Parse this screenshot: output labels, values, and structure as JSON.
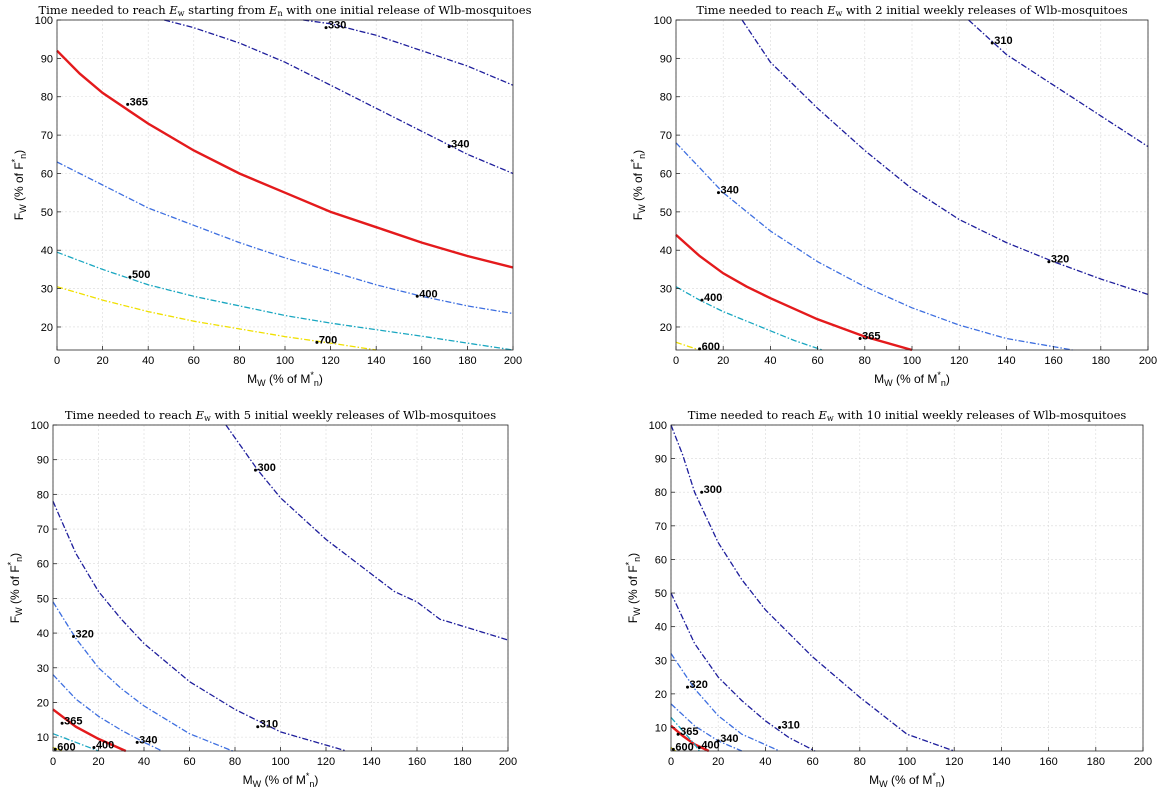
{
  "chart_data": [
    {
      "type": "line",
      "title_parts": [
        "Time needed to reach ",
        "E",
        "w",
        " starting from ",
        "E",
        "n",
        " with one initial release of Wlb-mosquitoes"
      ],
      "xlabel": {
        "main": "M",
        "sub": "W",
        "rest": " (% of M",
        "sup": "*",
        "sub2": "n",
        "close": ")"
      },
      "ylabel": {
        "main": "F",
        "sub": "W",
        "rest": " (% of F",
        "sup": "*",
        "sub2": "n",
        "close": ")"
      },
      "xlim": [
        0,
        200
      ],
      "ylim": [
        14,
        100
      ],
      "xticks": [
        0,
        20,
        40,
        60,
        80,
        100,
        120,
        140,
        160,
        180,
        200
      ],
      "yticks": [
        20,
        30,
        40,
        50,
        60,
        70,
        80,
        90,
        100
      ],
      "xtick_labels": [
        "0",
        "20",
        "40",
        "60",
        "80",
        "100",
        "120",
        "140",
        "160",
        "180",
        "200"
      ],
      "ytick_labels": [
        "20",
        "30",
        "40",
        "50",
        "60",
        "70",
        "80",
        "90",
        "100"
      ],
      "grid": true,
      "series": [
        {
          "name": "330",
          "color": "#1e1e9c",
          "style": "dashdot",
          "x": [
            108,
            120,
            140,
            160,
            180,
            200
          ],
          "y": [
            100,
            99,
            96,
            92,
            88,
            83
          ],
          "label": "330",
          "label_at": [
            118,
            98
          ]
        },
        {
          "name": "340",
          "color": "#1e1e9c",
          "style": "dashdot",
          "x": [
            47,
            60,
            80,
            100,
            120,
            140,
            160,
            180,
            200
          ],
          "y": [
            100,
            98,
            94,
            89,
            83,
            77,
            71,
            65,
            60
          ],
          "label": "340",
          "label_at": [
            172,
            67
          ]
        },
        {
          "name": "365",
          "color": "#e41a1c",
          "style": "solid",
          "x": [
            0,
            10,
            20,
            30,
            40,
            60,
            80,
            100,
            120,
            140,
            160,
            180,
            200
          ],
          "y": [
            92,
            86,
            81,
            77,
            73,
            66,
            60,
            55,
            50,
            46,
            42,
            38.5,
            35.5
          ],
          "label": "365",
          "label_at": [
            31,
            78
          ]
        },
        {
          "name": "400",
          "color": "#3e6fe0",
          "style": "dashdot",
          "x": [
            0,
            20,
            40,
            60,
            80,
            100,
            120,
            140,
            160,
            180,
            200
          ],
          "y": [
            63,
            57,
            51,
            46.5,
            42,
            38,
            34.5,
            31,
            28,
            25.5,
            23.5
          ],
          "label": "400",
          "label_at": [
            158,
            28
          ]
        },
        {
          "name": "500",
          "color": "#1aa7c1",
          "style": "dashdot",
          "x": [
            0,
            20,
            40,
            60,
            80,
            100,
            120,
            140,
            160,
            180,
            200
          ],
          "y": [
            39.5,
            35,
            31,
            28,
            25.5,
            23,
            21,
            19.3,
            17.6,
            15.8,
            14
          ],
          "label": "500",
          "label_at": [
            32,
            33
          ]
        },
        {
          "name": "700",
          "color": "#f0e000",
          "style": "dashdot",
          "x": [
            0,
            20,
            40,
            60,
            80,
            100,
            120,
            140
          ],
          "y": [
            30.5,
            27,
            24,
            21.5,
            19.5,
            17.5,
            15.8,
            14
          ],
          "label": "700",
          "label_at": [
            114,
            16
          ]
        }
      ]
    },
    {
      "type": "line",
      "title_parts": [
        "Time needed to reach ",
        "E",
        "w",
        " with 2 initial weekly releases of Wlb-mosquitoes"
      ],
      "xlabel": {
        "main": "M",
        "sub": "W",
        "rest": " (% of M",
        "sup": "*",
        "sub2": "n",
        "close": ")"
      },
      "ylabel": {
        "main": "F",
        "sub": "W",
        "rest": " (% of F",
        "sup": "*",
        "sub2": "n",
        "close": ")"
      },
      "xlim": [
        0,
        200
      ],
      "ylim": [
        14,
        100
      ],
      "xticks": [
        0,
        20,
        40,
        60,
        80,
        100,
        120,
        140,
        160,
        180,
        200
      ],
      "yticks": [
        20,
        30,
        40,
        50,
        60,
        70,
        80,
        90,
        100
      ],
      "xtick_labels": [
        "0",
        "20",
        "40",
        "60",
        "80",
        "100",
        "120",
        "140",
        "160",
        "180",
        "200"
      ],
      "ytick_labels": [
        "20",
        "30",
        "40",
        "50",
        "60",
        "70",
        "80",
        "90",
        "100"
      ],
      "grid": true,
      "series": [
        {
          "name": "310",
          "color": "#1e1e9c",
          "style": "dashdot",
          "x": [
            124,
            140,
            160,
            180,
            200
          ],
          "y": [
            100,
            91,
            83,
            75,
            67
          ],
          "label": "310",
          "label_at": [
            134,
            94
          ]
        },
        {
          "name": "320",
          "color": "#1e1e9c",
          "style": "dashdot",
          "x": [
            28,
            40,
            60,
            80,
            100,
            120,
            140,
            160,
            180,
            200
          ],
          "y": [
            100,
            89,
            77,
            66,
            56,
            48,
            42,
            37,
            32.5,
            28.5
          ],
          "label": "320",
          "label_at": [
            158,
            37
          ]
        },
        {
          "name": "340",
          "color": "#3e6fe0",
          "style": "dashdot",
          "x": [
            0,
            20,
            40,
            60,
            80,
            100,
            120,
            140,
            168
          ],
          "y": [
            68,
            55,
            45,
            37,
            30.5,
            25,
            20.5,
            17,
            14
          ],
          "label": "340",
          "label_at": [
            18,
            55
          ]
        },
        {
          "name": "365",
          "color": "#e41a1c",
          "style": "solid",
          "x": [
            0,
            10,
            20,
            30,
            40,
            60,
            80,
            100
          ],
          "y": [
            44,
            38.5,
            34,
            30.5,
            27.5,
            22,
            17.5,
            14
          ],
          "label": "365",
          "label_at": [
            78,
            17
          ]
        },
        {
          "name": "400",
          "color": "#1aa7c1",
          "style": "dashdot",
          "x": [
            0,
            10,
            20,
            30,
            40,
            50,
            62
          ],
          "y": [
            30.5,
            27,
            24,
            21.5,
            19,
            16.5,
            14
          ],
          "label": "400",
          "label_at": [
            11,
            27
          ]
        },
        {
          "name": "600",
          "color": "#f0e000",
          "style": "dashdot",
          "x": [
            0,
            5,
            10
          ],
          "y": [
            16,
            15,
            14
          ],
          "label": "600",
          "label_at": [
            10,
            14.3
          ]
        }
      ]
    },
    {
      "type": "line",
      "title_parts": [
        "Time needed to reach ",
        "E",
        "w",
        " with 5 initial weekly releases of Wlb-mosquitoes"
      ],
      "xlabel": {
        "main": "M",
        "sub": "W",
        "rest": " (% of M",
        "sup": "*",
        "sub2": "n",
        "close": ")"
      },
      "ylabel": {
        "main": "F",
        "sub": "W",
        "rest": " (% of F",
        "sup": "*",
        "sub2": "n",
        "close": ")"
      },
      "xlim": [
        0,
        200
      ],
      "ylim": [
        6,
        100
      ],
      "xticks": [
        0,
        20,
        40,
        60,
        80,
        100,
        120,
        140,
        160,
        180,
        200
      ],
      "yticks": [
        10,
        20,
        30,
        40,
        50,
        60,
        70,
        80,
        90,
        100
      ],
      "xtick_labels": [
        "0",
        "20",
        "40",
        "60",
        "80",
        "100",
        "120",
        "140",
        "160",
        "180",
        "200"
      ],
      "ytick_labels": [
        "10",
        "20",
        "30",
        "40",
        "50",
        "60",
        "70",
        "80",
        "90",
        "100"
      ],
      "grid": true,
      "series": [
        {
          "name": "300",
          "color": "#1e1e9c",
          "style": "dashdot",
          "x": [
            76,
            90,
            100,
            120,
            140,
            150,
            160,
            170,
            180,
            200
          ],
          "y": [
            100,
            87,
            79,
            67,
            57,
            52,
            49,
            44,
            42,
            38
          ],
          "label": "300",
          "label_at": [
            89,
            87
          ]
        },
        {
          "name": "310",
          "color": "#1e1e9c",
          "style": "dashdot",
          "x": [
            0,
            10,
            20,
            30,
            40,
            60,
            80,
            100,
            129
          ],
          "y": [
            78,
            63,
            52,
            44,
            37,
            26,
            18,
            11.5,
            6
          ],
          "label": "310",
          "label_at": [
            90,
            13
          ]
        },
        {
          "name": "320",
          "color": "#3e6fe0",
          "style": "dashdot",
          "x": [
            0,
            10,
            20,
            30,
            40,
            60,
            79
          ],
          "y": [
            49,
            38.5,
            30,
            24,
            19,
            11,
            6
          ],
          "label": "320",
          "label_at": [
            9,
            39
          ]
        },
        {
          "name": "340",
          "color": "#3e6fe0",
          "style": "dashdot",
          "x": [
            0,
            10,
            20,
            30,
            40,
            48
          ],
          "y": [
            28,
            21,
            16,
            12,
            8.5,
            6
          ],
          "label": "340",
          "label_at": [
            37,
            8.5
          ]
        },
        {
          "name": "365",
          "color": "#e41a1c",
          "style": "solid",
          "x": [
            0,
            10,
            20,
            32
          ],
          "y": [
            18,
            13,
            9.5,
            6
          ],
          "label": "365",
          "label_at": [
            4,
            14
          ]
        },
        {
          "name": "400",
          "color": "#1aa7c1",
          "style": "dashdot",
          "x": [
            0,
            10,
            20
          ],
          "y": [
            11,
            8.5,
            6
          ],
          "label": "400",
          "label_at": [
            18,
            7
          ]
        },
        {
          "name": "600",
          "color": "#f0e000",
          "style": "dashdot",
          "x": [
            0,
            2,
            4
          ],
          "y": [
            7,
            6.5,
            6
          ],
          "label": "600",
          "label_at": [
            1,
            6.5
          ]
        }
      ]
    },
    {
      "type": "line",
      "title_parts": [
        "Time needed to reach ",
        "E",
        "w",
        " with 10 initial weekly releases of Wlb-mosquitoes"
      ],
      "xlabel": {
        "main": "M",
        "sub": "W",
        "rest": " (% of M",
        "sup": "*",
        "sub2": "n",
        "close": ")"
      },
      "ylabel": {
        "main": "F",
        "sub": "W",
        "rest": " (% of F",
        "sup": "*",
        "sub2": "n",
        "close": ")"
      },
      "xlim": [
        0,
        200
      ],
      "ylim": [
        3,
        100
      ],
      "xticks": [
        0,
        20,
        40,
        60,
        80,
        100,
        120,
        140,
        160,
        180,
        200
      ],
      "yticks": [
        10,
        20,
        30,
        40,
        50,
        60,
        70,
        80,
        90,
        100
      ],
      "xtick_labels": [
        "0",
        "20",
        "40",
        "60",
        "80",
        "100",
        "120",
        "140",
        "160",
        "180",
        "200"
      ],
      "ytick_labels": [
        "10",
        "20",
        "30",
        "40",
        "50",
        "60",
        "70",
        "80",
        "90",
        "100"
      ],
      "grid": true,
      "series": [
        {
          "name": "300",
          "color": "#1e1e9c",
          "style": "dashdot",
          "x": [
            0,
            5,
            10,
            20,
            30,
            40,
            60,
            80,
            100,
            120
          ],
          "y": [
            100,
            91,
            80,
            65,
            54,
            45,
            31,
            19,
            8,
            3
          ],
          "label": "300",
          "label_at": [
            13,
            80
          ]
        },
        {
          "name": "310",
          "color": "#1e1e9c",
          "style": "dashdot",
          "x": [
            0,
            10,
            20,
            30,
            40,
            50,
            61
          ],
          "y": [
            50,
            35,
            25,
            18,
            12,
            7,
            3
          ],
          "label": "310",
          "label_at": [
            46,
            10
          ]
        },
        {
          "name": "320",
          "color": "#3e6fe0",
          "style": "dashdot",
          "x": [
            0,
            10,
            20,
            30,
            46
          ],
          "y": [
            32,
            21.5,
            13.5,
            8,
            3
          ],
          "label": "320",
          "label_at": [
            7,
            22
          ]
        },
        {
          "name": "340",
          "color": "#3e6fe0",
          "style": "dashdot",
          "x": [
            0,
            10,
            20,
            30
          ],
          "y": [
            17,
            10.5,
            6,
            3
          ],
          "label": "340",
          "label_at": [
            20,
            6
          ]
        },
        {
          "name": "365",
          "color": "#e41a1c",
          "style": "solid",
          "x": [
            0,
            5,
            10,
            16
          ],
          "y": [
            10.5,
            7.5,
            5,
            3
          ],
          "label": "365",
          "label_at": [
            3,
            8
          ]
        },
        {
          "name": "400",
          "color": "#1aa7c1",
          "style": "dashdot",
          "x": [
            0,
            5,
            10,
            12
          ],
          "y": [
            13,
            9,
            5,
            3
          ],
          "label": "400",
          "label_at": [
            12,
            4
          ]
        },
        {
          "name": "600",
          "color": "#f0e000",
          "style": "dashdot",
          "x": [
            0,
            2
          ],
          "y": [
            4,
            3
          ],
          "label": "600",
          "label_at": [
            1,
            3.5
          ]
        }
      ]
    }
  ]
}
